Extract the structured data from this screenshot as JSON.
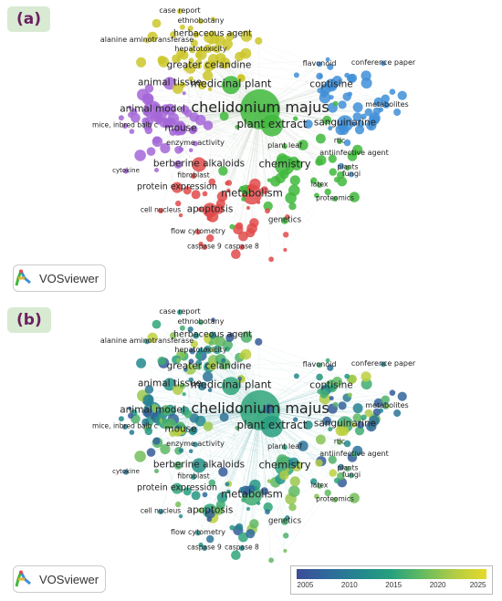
{
  "panels": [
    {
      "label": "(a)"
    },
    {
      "label": "(b)"
    }
  ],
  "branding": {
    "name": "VOSviewer"
  },
  "colorbar": {
    "ticks": [
      "2005",
      "2010",
      "2015",
      "2020",
      "2025"
    ],
    "min": 2003,
    "max": 2026,
    "colors": [
      "#3b4d97",
      "#2f6a9c",
      "#23878e",
      "#26a17d",
      "#66bb60",
      "#b2cd44",
      "#e6da2a"
    ]
  },
  "clusters": {
    "red": "#e24a4a",
    "green": "#3fb83c",
    "blue": "#3f8fd8",
    "yellow": "#cdc72a",
    "purple": "#a566d8"
  },
  "keywords": [
    {
      "text": "case report",
      "cluster": "yellow",
      "year": 2013
    },
    {
      "text": "ethnobotany",
      "cluster": "yellow",
      "year": 2016
    },
    {
      "text": "herbaceous agent",
      "cluster": "yellow",
      "year": 2011
    },
    {
      "text": "alanine aminotransferase",
      "cluster": "yellow",
      "year": 2012
    },
    {
      "text": "hepatotoxicity",
      "cluster": "yellow",
      "year": 2012
    },
    {
      "text": "greater celandine",
      "cluster": "yellow",
      "year": 2013
    },
    {
      "text": "animal tissue",
      "cluster": "purple",
      "year": 2012
    },
    {
      "text": "medicinal plant",
      "cluster": "green",
      "year": 2015
    },
    {
      "text": "flavonoid",
      "cluster": "blue",
      "year": 2016
    },
    {
      "text": "conference paper",
      "cluster": "blue",
      "year": 2010
    },
    {
      "text": "coptisine",
      "cluster": "blue",
      "year": 2017
    },
    {
      "text": "chelidonium majus",
      "cluster": "green",
      "year": 2015
    },
    {
      "text": "animal model",
      "cluster": "purple",
      "year": 2011
    },
    {
      "text": "metabolites",
      "cluster": "blue",
      "year": 2021
    },
    {
      "text": "plant extract",
      "cluster": "green",
      "year": 2014
    },
    {
      "text": "sanguinarine",
      "cluster": "blue",
      "year": 2016
    },
    {
      "text": "mice, inbred balb c",
      "cluster": "purple",
      "year": 2009
    },
    {
      "text": "mouse",
      "cluster": "purple",
      "year": 2011
    },
    {
      "text": "enzyme activity",
      "cluster": "purple",
      "year": 2010
    },
    {
      "text": "plant leaf",
      "cluster": "green",
      "year": 2014
    },
    {
      "text": "rtlc",
      "cluster": "green",
      "year": 2019
    },
    {
      "text": "antiinfective agent",
      "cluster": "green",
      "year": 2016
    },
    {
      "text": "berberine alkaloids",
      "cluster": "red",
      "year": 2012
    },
    {
      "text": "chemistry",
      "cluster": "green",
      "year": 2015
    },
    {
      "text": "plants",
      "cluster": "green",
      "year": 2017
    },
    {
      "text": "fungi",
      "cluster": "blue",
      "year": 2014
    },
    {
      "text": "cytokine",
      "cluster": "purple",
      "year": 2008
    },
    {
      "text": "fibroblast",
      "cluster": "red",
      "year": 2012
    },
    {
      "text": "protein expression",
      "cluster": "red",
      "year": 2015
    },
    {
      "text": "metabolism",
      "cluster": "red",
      "year": 2016
    },
    {
      "text": "latex",
      "cluster": "green",
      "year": 2018
    },
    {
      "text": "proteomics",
      "cluster": "green",
      "year": 2019
    },
    {
      "text": "apoptosis",
      "cluster": "red",
      "year": 2015
    },
    {
      "text": "cell nucleus",
      "cluster": "red",
      "year": 2010
    },
    {
      "text": "genetics",
      "cluster": "green",
      "year": 2016
    },
    {
      "text": "flow cytometry",
      "cluster": "red",
      "year": 2012
    },
    {
      "text": "caspase 9",
      "cluster": "red",
      "year": 2011
    },
    {
      "text": "caspase 8",
      "cluster": "red",
      "year": 2011
    }
  ]
}
